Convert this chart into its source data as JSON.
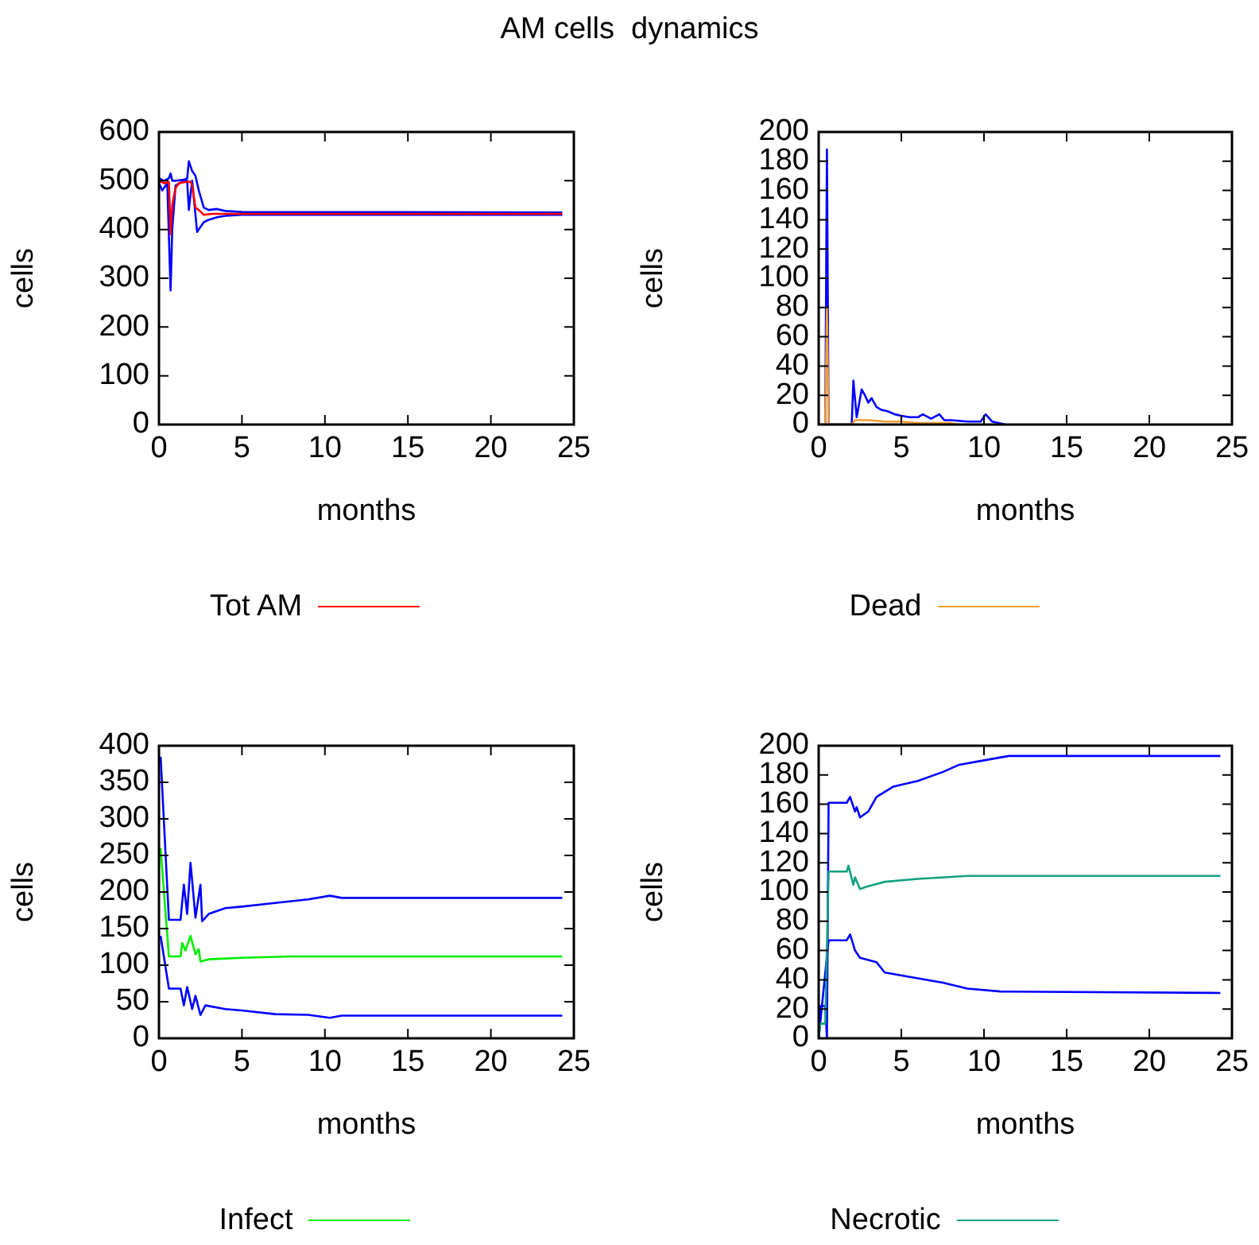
{
  "chart_data": [
    {
      "type": "line",
      "title": "AM cells  dynamics",
      "xlabel": "months",
      "ylabel": "cells",
      "xlim": [
        0,
        25
      ],
      "xticks": [
        0,
        5,
        10,
        15,
        20,
        25
      ],
      "ylim": [
        0,
        600
      ],
      "yticks": [
        0,
        100,
        200,
        300,
        400,
        500,
        600
      ],
      "grid": false,
      "legend": "bottom",
      "marker": "none",
      "series": [
        {
          "name": "Tot AM",
          "color": "#ff0000",
          "x": [
            0,
            0.3,
            0.6,
            0.7,
            0.8,
            1.0,
            1.2,
            1.5,
            1.9,
            2.0,
            2.2,
            2.4,
            2.7,
            3.2,
            4,
            24.3
          ],
          "values": [
            500,
            495,
            497,
            390,
            450,
            485,
            495,
            497,
            498,
            490,
            445,
            440,
            430,
            432,
            432,
            432
          ]
        },
        {
          "color": "#0000ff",
          "x": [
            0,
            0.3,
            0.6,
            0.7,
            0.8,
            1.0,
            1.5,
            1.7,
            1.8,
            2.0,
            2.2,
            2.4,
            2.7,
            3.0,
            3.5,
            4,
            5,
            24.3
          ],
          "values": [
            505,
            500,
            505,
            515,
            500,
            500,
            502,
            505,
            540,
            520,
            510,
            480,
            445,
            440,
            442,
            438,
            436,
            435
          ]
        },
        {
          "color": "#0000ff",
          "x": [
            0,
            0.2,
            0.5,
            0.7,
            0.8,
            1.0,
            1.5,
            1.7,
            1.8,
            2.0,
            2.3,
            2.7,
            3.0,
            3.5,
            4,
            5,
            24.3
          ],
          "values": [
            495,
            480,
            495,
            275,
            400,
            490,
            500,
            500,
            440,
            500,
            395,
            415,
            420,
            425,
            428,
            430,
            430
          ]
        }
      ]
    },
    {
      "type": "line",
      "xlabel": "months",
      "ylabel": "cells",
      "xlim": [
        0,
        25
      ],
      "xticks": [
        0,
        5,
        10,
        15,
        20,
        25
      ],
      "ylim": [
        0,
        200
      ],
      "yticks": [
        0,
        20,
        40,
        60,
        80,
        100,
        120,
        140,
        160,
        180,
        200
      ],
      "grid": false,
      "legend": "bottom",
      "marker": "none",
      "series": [
        {
          "name": "Dead",
          "color": "#f0a030",
          "x": [
            0,
            0.4,
            0.5,
            0.6,
            2.0,
            2.2,
            3,
            4,
            5,
            6,
            8,
            8.5
          ],
          "values": [
            0,
            0,
            80,
            0,
            0,
            3,
            3,
            2,
            2,
            1,
            1,
            0
          ]
        },
        {
          "color": "#0000ff",
          "x": [
            0,
            0.4,
            0.5,
            0.6,
            2.0,
            2.1,
            2.3,
            2.6,
            2.8,
            3.0,
            3.2,
            3.5,
            3.8,
            4.2,
            4.6,
            5,
            5.5,
            6,
            6.3,
            6.8,
            7.3,
            7.6,
            8,
            9,
            9.8,
            10.1,
            10.5,
            11.3
          ],
          "values": [
            0,
            0,
            188,
            0,
            0,
            30,
            5,
            24,
            20,
            15,
            18,
            12,
            10,
            9,
            7,
            6,
            5,
            5,
            7,
            4,
            7,
            3,
            3,
            2,
            2,
            7,
            2,
            0
          ]
        }
      ]
    },
    {
      "type": "line",
      "xlabel": "months",
      "ylabel": "cells",
      "xlim": [
        0,
        25
      ],
      "xticks": [
        0,
        5,
        10,
        15,
        20,
        25
      ],
      "ylim": [
        0,
        400
      ],
      "yticks": [
        0,
        50,
        100,
        150,
        200,
        250,
        300,
        350,
        400
      ],
      "grid": false,
      "legend": "bottom",
      "marker": "none",
      "series": [
        {
          "name": "Infect",
          "color": "#00ee00",
          "x": [
            0.1,
            0.6,
            1.3,
            1.4,
            1.6,
            1.9,
            2.2,
            2.4,
            2.5,
            3,
            5,
            8,
            24.3
          ],
          "values": [
            260,
            112,
            112,
            130,
            120,
            140,
            115,
            122,
            105,
            108,
            110,
            112,
            112
          ]
        },
        {
          "color": "#0000ff",
          "x": [
            0.1,
            0.6,
            1.3,
            1.5,
            1.7,
            1.9,
            2.2,
            2.5,
            2.6,
            3,
            4,
            5,
            7,
            9,
            10.3,
            11,
            24.3
          ],
          "values": [
            385,
            162,
            162,
            210,
            170,
            240,
            165,
            210,
            160,
            170,
            178,
            180,
            185,
            190,
            195,
            192,
            192
          ]
        },
        {
          "color": "#0000ff",
          "x": [
            0.1,
            0.6,
            1.3,
            1.5,
            1.7,
            2.0,
            2.2,
            2.5,
            2.8,
            4,
            5,
            7,
            9,
            10.3,
            11,
            24.3
          ],
          "values": [
            140,
            68,
            68,
            45,
            70,
            40,
            58,
            32,
            45,
            40,
            38,
            33,
            32,
            28,
            31,
            31
          ]
        }
      ]
    },
    {
      "type": "line",
      "xlabel": "months",
      "ylabel": "cells",
      "xlim": [
        0,
        25
      ],
      "xticks": [
        0,
        5,
        10,
        15,
        20,
        25
      ],
      "ylim": [
        0,
        200
      ],
      "yticks": [
        0,
        20,
        40,
        60,
        80,
        100,
        120,
        140,
        160,
        180,
        200
      ],
      "grid": false,
      "legend": "bottom",
      "marker": "none",
      "series": [
        {
          "name": "Necrotic",
          "color": "#10a080",
          "x": [
            0,
            0.1,
            0.4,
            0.6,
            1.7,
            1.8,
            2.1,
            2.2,
            2.5,
            3,
            4,
            6,
            9,
            24.3
          ],
          "values": [
            0,
            10,
            10,
            114,
            114,
            118,
            105,
            110,
            102,
            104,
            107,
            109,
            111,
            111
          ]
        },
        {
          "color": "#0000ff",
          "x": [
            0,
            0.1,
            0.4,
            0.5,
            0.6,
            1.7,
            1.9,
            2.2,
            2.3,
            2.5,
            3,
            3.5,
            4.5,
            6,
            7.5,
            8.5,
            10,
            11.5,
            24.3
          ],
          "values": [
            0,
            22,
            22,
            0,
            161,
            161,
            165,
            155,
            158,
            151,
            155,
            165,
            172,
            176,
            182,
            187,
            190,
            193,
            193
          ]
        },
        {
          "color": "#0000ff",
          "x": [
            0,
            0.6,
            1.7,
            1.9,
            2.2,
            2.5,
            3.5,
            4,
            5.5,
            7.5,
            9,
            11,
            24.3
          ],
          "values": [
            0,
            67,
            67,
            71,
            60,
            55,
            52,
            45,
            42,
            38,
            34,
            32,
            31
          ]
        }
      ]
    }
  ]
}
